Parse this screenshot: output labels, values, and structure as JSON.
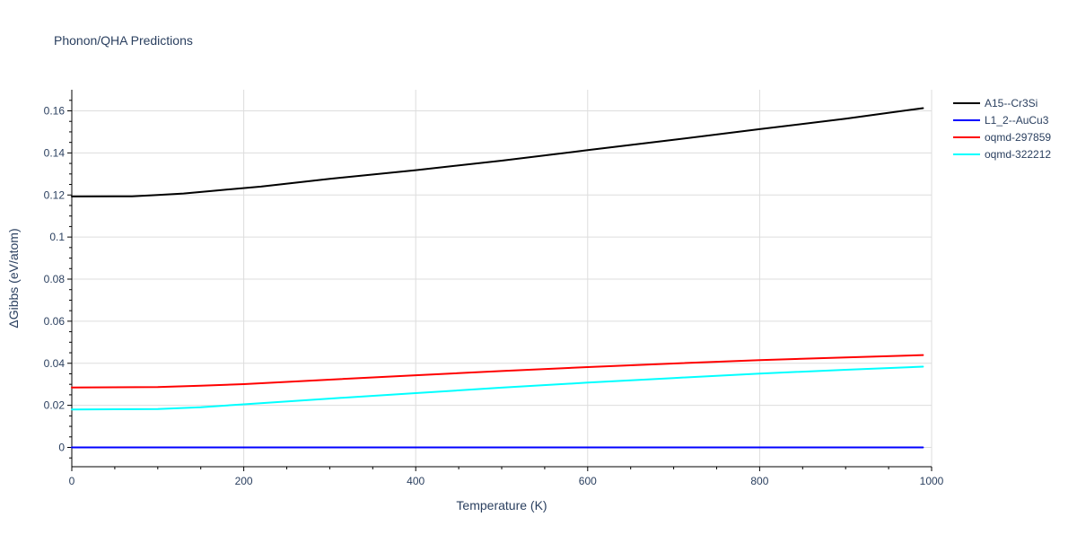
{
  "chart_data": {
    "type": "line",
    "title": "Phonon/QHA Predictions",
    "xlabel": "Temperature (K)",
    "ylabel": "ΔGibbs (eV/atom)",
    "xlim": [
      0,
      1000
    ],
    "ylim": [
      -0.009,
      0.17
    ],
    "x_ticks": [
      0,
      200,
      400,
      600,
      800,
      1000
    ],
    "y_ticks": [
      0,
      0.02,
      0.04,
      0.06,
      0.08,
      0.1,
      0.12,
      0.14,
      0.16
    ],
    "x_tick_labels": [
      "0",
      "200",
      "400",
      "600",
      "800",
      "1000"
    ],
    "y_tick_labels": [
      "0",
      "0.02",
      "0.04",
      "0.06",
      "0.08",
      "0.1",
      "0.12",
      "0.14",
      "0.16"
    ],
    "grid": true,
    "legend_position": "top-right",
    "series": [
      {
        "name": "A15--Cr3Si",
        "color": "#000000",
        "x": [
          0,
          70,
          100,
          130,
          170,
          220,
          300,
          400,
          500,
          600,
          700,
          800,
          900,
          990
        ],
        "y": [
          0.1193,
          0.1194,
          0.12,
          0.1207,
          0.1222,
          0.124,
          0.1277,
          0.1318,
          0.1363,
          0.1413,
          0.1462,
          0.1513,
          0.1563,
          0.1613
        ]
      },
      {
        "name": "L1_2--AuCu3",
        "color": "#0000ff",
        "x": [
          0,
          990
        ],
        "y": [
          0.0,
          0.0
        ]
      },
      {
        "name": "oqmd-297859",
        "color": "#ff0000",
        "x": [
          0,
          100,
          150,
          200,
          300,
          400,
          500,
          600,
          700,
          800,
          900,
          990
        ],
        "y": [
          0.0285,
          0.0287,
          0.0293,
          0.0301,
          0.0322,
          0.0343,
          0.0363,
          0.0382,
          0.0399,
          0.0415,
          0.0428,
          0.0439
        ]
      },
      {
        "name": "oqmd-322212",
        "color": "#00ffff",
        "x": [
          0,
          100,
          150,
          200,
          300,
          400,
          500,
          600,
          700,
          800,
          900,
          990
        ],
        "y": [
          0.018,
          0.0182,
          0.0191,
          0.0205,
          0.0232,
          0.0258,
          0.0284,
          0.0308,
          0.033,
          0.0351,
          0.0369,
          0.0384
        ]
      }
    ]
  }
}
